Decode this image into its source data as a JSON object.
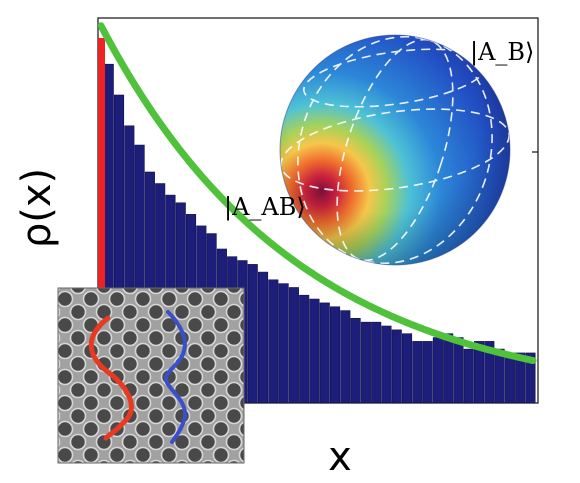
{
  "chart_data": {
    "type": "bar",
    "xlabel": "x",
    "ylabel": "ρ(x)",
    "ylim": [
      0,
      1
    ],
    "values": [
      0.88,
      0.8,
      0.72,
      0.67,
      0.6,
      0.57,
      0.54,
      0.52,
      0.49,
      0.46,
      0.44,
      0.4,
      0.38,
      0.37,
      0.36,
      0.34,
      0.32,
      0.31,
      0.3,
      0.28,
      0.27,
      0.26,
      0.25,
      0.24,
      0.22,
      0.21,
      0.21,
      0.2,
      0.19,
      0.18,
      0.16,
      0.16,
      0.17,
      0.18,
      0.17,
      0.14,
      0.16,
      0.16,
      0.14,
      0.13,
      0.13,
      0.13
    ],
    "fit": {
      "kind": "exponential",
      "a": 0.98,
      "k": 0.052,
      "color": "#4fc13a"
    },
    "threshold_bar": {
      "color": "#ee2222"
    },
    "bar_color": "#1d1d7a",
    "grid": false,
    "legend": "none"
  },
  "annotations": {
    "ket_ab": "|A_AB⟩",
    "ket_b": "|A_B⟩"
  },
  "inset": {
    "left_path_color": "#e83a22",
    "right_path_color": "#3a50c8"
  }
}
